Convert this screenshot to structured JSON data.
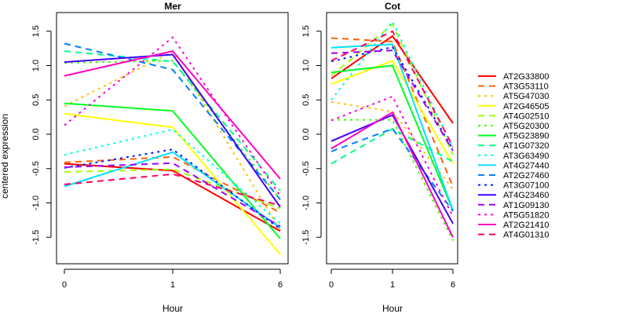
{
  "chart_data": [
    {
      "type": "line",
      "title": "Mer",
      "xlabel": "Hour",
      "ylabel": "centered expression",
      "x": [
        "0",
        "1",
        "6"
      ],
      "ylim": [
        -1.9,
        1.8
      ],
      "yticks": [
        "-1.5",
        "-1.0",
        "-0.5",
        "0.0",
        "0.5",
        "1.0",
        "1.5"
      ],
      "series": [
        {
          "name": "AT2G33800",
          "values": [
            -0.43,
            -0.53,
            -1.41
          ]
        },
        {
          "name": "AT3G53110",
          "values": [
            -0.41,
            -0.33,
            -1.14
          ]
        },
        {
          "name": "AT5G47030",
          "values": [
            0.41,
            1.2,
            -1.4
          ]
        },
        {
          "name": "AT2G46505",
          "values": [
            0.3,
            0.1,
            -1.75
          ]
        },
        {
          "name": "AT4G02510",
          "values": [
            -0.55,
            -0.51,
            -1.08
          ]
        },
        {
          "name": "AT5G20300",
          "values": [
            1.04,
            1.07,
            -0.95
          ]
        },
        {
          "name": "AT5G23890",
          "values": [
            0.45,
            0.34,
            -1.52
          ]
        },
        {
          "name": "AT1G07320",
          "values": [
            1.21,
            1.06,
            -0.82
          ]
        },
        {
          "name": "AT3G63490",
          "values": [
            -0.3,
            0.07,
            -1.3
          ]
        },
        {
          "name": "AT4G27440",
          "values": [
            -0.76,
            -0.26,
            -1.36
          ]
        },
        {
          "name": "AT2G27460",
          "values": [
            1.32,
            0.94,
            -0.95
          ]
        },
        {
          "name": "AT3G07100",
          "values": [
            -0.49,
            -0.22,
            -1.38
          ]
        },
        {
          "name": "AT4G23460",
          "values": [
            1.05,
            1.16,
            -1.06
          ]
        },
        {
          "name": "AT1G09130",
          "values": [
            -0.48,
            -0.42,
            -1.34
          ]
        },
        {
          "name": "AT5G51820",
          "values": [
            0.13,
            1.41,
            -0.9
          ]
        },
        {
          "name": "AT2G21410",
          "values": [
            0.85,
            1.21,
            -0.65
          ]
        },
        {
          "name": "AT4G01310",
          "values": [
            -0.73,
            -0.58,
            -1.04
          ]
        }
      ]
    },
    {
      "type": "line",
      "title": "Cot",
      "xlabel": "Hour",
      "ylabel": "",
      "x": [
        "0",
        "1",
        "6"
      ],
      "ylim": [
        -1.9,
        1.8
      ],
      "yticks": [
        "-1.5",
        "-1.0",
        "-0.5",
        "0.0",
        "0.5",
        "1.0",
        "1.5"
      ],
      "series": [
        {
          "name": "AT2G33800",
          "values": [
            0.81,
            1.43,
            0.16
          ]
        },
        {
          "name": "AT3G53110",
          "values": [
            1.4,
            1.35,
            -0.76
          ]
        },
        {
          "name": "AT5G47030",
          "values": [
            0.47,
            0.33,
            -0.8
          ]
        },
        {
          "name": "AT2G46505",
          "values": [
            0.73,
            1.07,
            -0.43
          ]
        },
        {
          "name": "AT4G02510",
          "values": [
            0.85,
            1.6,
            -0.3
          ]
        },
        {
          "name": "AT5G20300",
          "values": [
            0.21,
            0.21,
            -1.55
          ]
        },
        {
          "name": "AT5G23890",
          "values": [
            0.9,
            1.0,
            -1.11
          ]
        },
        {
          "name": "AT1G07320",
          "values": [
            -0.43,
            0.08,
            -0.4
          ]
        },
        {
          "name": "AT3G63490",
          "values": [
            0.5,
            1.64,
            -0.2
          ]
        },
        {
          "name": "AT4G27440",
          "values": [
            1.26,
            1.31,
            -1.11
          ]
        },
        {
          "name": "AT2G27460",
          "values": [
            -0.25,
            0.08,
            -1.12
          ]
        },
        {
          "name": "AT3G07100",
          "values": [
            1.06,
            1.27,
            -0.22
          ]
        },
        {
          "name": "AT4G23460",
          "values": [
            -0.1,
            0.28,
            -1.3
          ]
        },
        {
          "name": "AT1G09130",
          "values": [
            1.18,
            1.22,
            -0.24
          ]
        },
        {
          "name": "AT5G51820",
          "values": [
            0.2,
            0.55,
            -1.2
          ]
        },
        {
          "name": "AT2G21410",
          "values": [
            -0.21,
            0.32,
            -1.5
          ]
        },
        {
          "name": "AT4G01310",
          "values": [
            1.07,
            1.5,
            -0.18
          ]
        }
      ]
    }
  ],
  "legend": {
    "position": "right",
    "entries": [
      {
        "name": "AT2G33800",
        "color": "#ff0000",
        "dash": "solid"
      },
      {
        "name": "AT3G53110",
        "color": "#ff6000",
        "dash": "dashed"
      },
      {
        "name": "AT5G47030",
        "color": "#ffbf00",
        "dash": "dotted"
      },
      {
        "name": "AT2G46505",
        "color": "#ffff00",
        "dash": "solid"
      },
      {
        "name": "AT4G02510",
        "color": "#9fff00",
        "dash": "dashed"
      },
      {
        "name": "AT5G20300",
        "color": "#40ff00",
        "dash": "dotted"
      },
      {
        "name": "AT5G23890",
        "color": "#00ff20",
        "dash": "solid"
      },
      {
        "name": "AT1G07320",
        "color": "#00ff80",
        "dash": "dashed"
      },
      {
        "name": "AT3G63490",
        "color": "#00ffdf",
        "dash": "dotted"
      },
      {
        "name": "AT4G27440",
        "color": "#00dfff",
        "dash": "solid"
      },
      {
        "name": "AT2G27460",
        "color": "#0080ff",
        "dash": "dashed"
      },
      {
        "name": "AT3G07100",
        "color": "#0020ff",
        "dash": "dotted"
      },
      {
        "name": "AT4G23460",
        "color": "#4000ff",
        "dash": "solid"
      },
      {
        "name": "AT1G09130",
        "color": "#9f00ff",
        "dash": "dashed"
      },
      {
        "name": "AT5G51820",
        "color": "#ff00df",
        "dash": "dotted"
      },
      {
        "name": "AT2G21410",
        "color": "#ff00c0",
        "dash": "solid"
      },
      {
        "name": "AT4G01310",
        "color": "#ff0060",
        "dash": "dashed"
      }
    ]
  }
}
